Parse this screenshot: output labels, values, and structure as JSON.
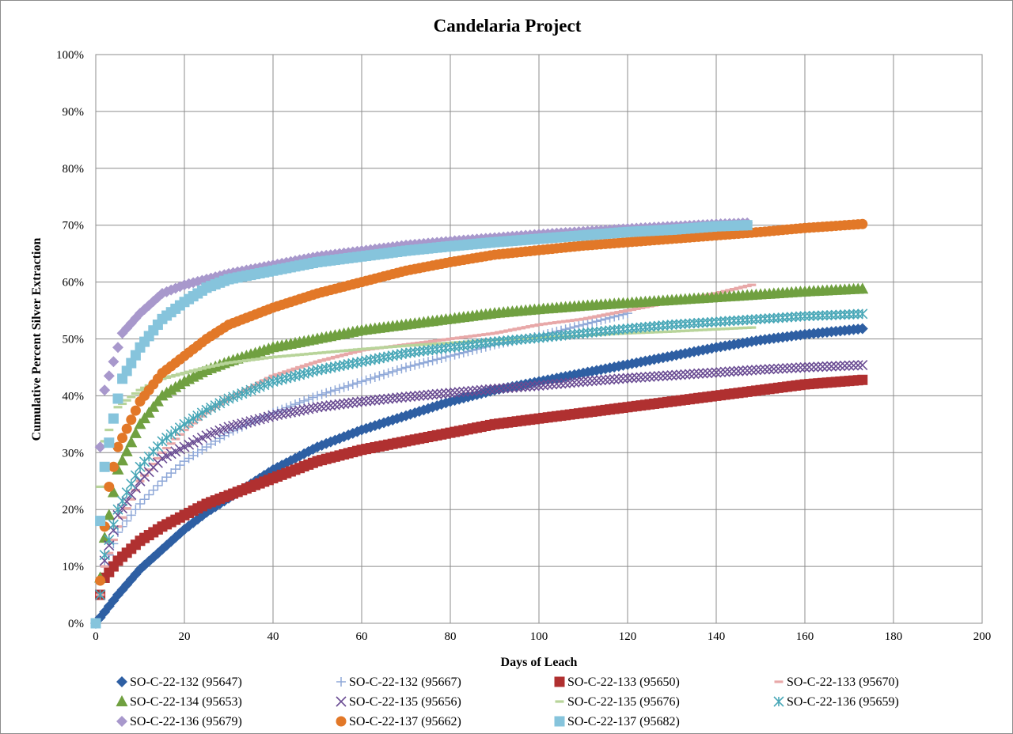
{
  "chart_data": {
    "type": "scatter",
    "title": "Candelaria Project",
    "xlabel": "Days of Leach",
    "ylabel": "Cumulative Percent Silver Extraction",
    "xlim": [
      0,
      200
    ],
    "ylim": [
      0,
      100
    ],
    "x_ticks": [
      "0",
      "20",
      "40",
      "60",
      "80",
      "100",
      "120",
      "140",
      "160",
      "180",
      "200"
    ],
    "y_ticks": [
      "0%",
      "10%",
      "20%",
      "30%",
      "40%",
      "50%",
      "60%",
      "70%",
      "80%",
      "90%",
      "100%"
    ],
    "grid": true,
    "legend_position": "bottom",
    "series": [
      {
        "name": "SO-C-22-132 (95647)",
        "color": "#2e5fa3",
        "marker": "diamond",
        "x_end": 173,
        "points": [
          [
            0,
            0
          ],
          [
            2,
            2
          ],
          [
            5,
            5
          ],
          [
            10,
            9.5
          ],
          [
            15,
            13
          ],
          [
            20,
            16.5
          ],
          [
            25,
            19.5
          ],
          [
            30,
            22
          ],
          [
            40,
            27
          ],
          [
            50,
            31
          ],
          [
            60,
            34
          ],
          [
            70,
            36.5
          ],
          [
            80,
            39
          ],
          [
            90,
            41
          ],
          [
            100,
            42.5
          ],
          [
            110,
            44
          ],
          [
            120,
            45.5
          ],
          [
            130,
            47
          ],
          [
            140,
            48.5
          ],
          [
            150,
            49.8
          ],
          [
            160,
            50.8
          ],
          [
            173,
            51.8
          ]
        ]
      },
      {
        "name": "SO-C-22-132 (95667)",
        "color": "#8fa8d8",
        "marker": "plus",
        "x_end": 120,
        "points": [
          [
            1,
            5
          ],
          [
            2,
            10
          ],
          [
            5,
            16
          ],
          [
            10,
            21
          ],
          [
            15,
            25
          ],
          [
            20,
            28.5
          ],
          [
            25,
            31
          ],
          [
            30,
            33.5
          ],
          [
            40,
            37
          ],
          [
            50,
            40
          ],
          [
            60,
            42.5
          ],
          [
            70,
            45
          ],
          [
            80,
            47
          ],
          [
            90,
            49
          ],
          [
            100,
            50.5
          ],
          [
            110,
            52.5
          ],
          [
            120,
            54.5
          ]
        ]
      },
      {
        "name": "SO-C-22-133 (95650)",
        "color": "#b03030",
        "marker": "square",
        "x_end": 173,
        "points": [
          [
            1,
            5
          ],
          [
            2,
            8
          ],
          [
            5,
            11
          ],
          [
            10,
            14.5
          ],
          [
            15,
            17
          ],
          [
            20,
            19
          ],
          [
            25,
            21
          ],
          [
            30,
            22.5
          ],
          [
            40,
            25.5
          ],
          [
            50,
            28.5
          ],
          [
            60,
            30.5
          ],
          [
            70,
            32
          ],
          [
            80,
            33.5
          ],
          [
            90,
            35
          ],
          [
            100,
            36
          ],
          [
            110,
            37
          ],
          [
            120,
            38
          ],
          [
            130,
            39
          ],
          [
            140,
            40
          ],
          [
            150,
            41
          ],
          [
            160,
            42
          ],
          [
            173,
            42.8
          ]
        ]
      },
      {
        "name": "SO-C-22-133 (95670)",
        "color": "#e8a8a8",
        "marker": "dash",
        "x_end": 148,
        "points": [
          [
            1,
            5
          ],
          [
            2,
            10
          ],
          [
            5,
            17
          ],
          [
            10,
            25
          ],
          [
            15,
            30
          ],
          [
            20,
            34
          ],
          [
            25,
            37
          ],
          [
            30,
            39.5
          ],
          [
            40,
            43.5
          ],
          [
            50,
            46
          ],
          [
            60,
            48
          ],
          [
            70,
            49
          ],
          [
            80,
            50
          ],
          [
            90,
            51
          ],
          [
            100,
            52.5
          ],
          [
            110,
            53.5
          ],
          [
            120,
            55
          ],
          [
            130,
            56.5
          ],
          [
            140,
            58
          ],
          [
            148,
            59.5
          ]
        ]
      },
      {
        "name": "SO-C-22-134 (95653)",
        "color": "#70a040",
        "marker": "triangle",
        "x_end": 173,
        "points": [
          [
            1,
            8
          ],
          [
            2,
            15
          ],
          [
            5,
            27
          ],
          [
            10,
            35
          ],
          [
            15,
            40
          ],
          [
            20,
            42.5
          ],
          [
            25,
            44.5
          ],
          [
            30,
            46
          ],
          [
            40,
            48.5
          ],
          [
            50,
            50
          ],
          [
            60,
            51.5
          ],
          [
            70,
            52.5
          ],
          [
            80,
            53.5
          ],
          [
            90,
            54.5
          ],
          [
            100,
            55.2
          ],
          [
            110,
            55.8
          ],
          [
            120,
            56.3
          ],
          [
            130,
            56.8
          ],
          [
            140,
            57.3
          ],
          [
            150,
            57.8
          ],
          [
            160,
            58.3
          ],
          [
            173,
            58.8
          ]
        ]
      },
      {
        "name": "SO-C-22-135 (95656)",
        "color": "#6a4c93",
        "marker": "x",
        "x_end": 173,
        "points": [
          [
            1,
            5
          ],
          [
            2,
            11
          ],
          [
            5,
            19
          ],
          [
            10,
            25
          ],
          [
            15,
            29
          ],
          [
            20,
            31
          ],
          [
            25,
            33
          ],
          [
            30,
            34.5
          ],
          [
            40,
            36.5
          ],
          [
            50,
            38
          ],
          [
            60,
            39
          ],
          [
            70,
            39.8
          ],
          [
            80,
            40.5
          ],
          [
            90,
            41.2
          ],
          [
            100,
            41.8
          ],
          [
            110,
            42.5
          ],
          [
            120,
            43.1
          ],
          [
            130,
            43.6
          ],
          [
            140,
            44.1
          ],
          [
            150,
            44.6
          ],
          [
            160,
            45
          ],
          [
            173,
            45.4
          ]
        ]
      },
      {
        "name": "SO-C-22-135 (95676)",
        "color": "#b8d49a",
        "marker": "dash",
        "x_end": 148,
        "points": [
          [
            1,
            24
          ],
          [
            2,
            32
          ],
          [
            5,
            38
          ],
          [
            10,
            41
          ],
          [
            15,
            43
          ],
          [
            20,
            44
          ],
          [
            25,
            45
          ],
          [
            30,
            45.8
          ],
          [
            40,
            46.8
          ],
          [
            50,
            47.5
          ],
          [
            60,
            48.2
          ],
          [
            70,
            48.8
          ],
          [
            80,
            49.3
          ],
          [
            90,
            49.8
          ],
          [
            100,
            50.2
          ],
          [
            110,
            50.6
          ],
          [
            120,
            51
          ],
          [
            130,
            51.3
          ],
          [
            140,
            51.7
          ],
          [
            148,
            52
          ]
        ]
      },
      {
        "name": "SO-C-22-136 (95659)",
        "color": "#4aa8b8",
        "marker": "asterisk",
        "x_end": 173,
        "points": [
          [
            1,
            5
          ],
          [
            2,
            12
          ],
          [
            5,
            20
          ],
          [
            10,
            27.5
          ],
          [
            15,
            32
          ],
          [
            20,
            35
          ],
          [
            25,
            37.5
          ],
          [
            30,
            39.5
          ],
          [
            40,
            42.5
          ],
          [
            50,
            44.5
          ],
          [
            60,
            46
          ],
          [
            70,
            47.5
          ],
          [
            80,
            48.5
          ],
          [
            90,
            49.5
          ],
          [
            100,
            50.2
          ],
          [
            110,
            51
          ],
          [
            120,
            51.8
          ],
          [
            130,
            52.5
          ],
          [
            140,
            53
          ],
          [
            150,
            53.5
          ],
          [
            160,
            54
          ],
          [
            173,
            54.4
          ]
        ]
      },
      {
        "name": "SO-C-22-136 (95679)",
        "color": "#a898cc",
        "marker": "diamond",
        "x_end": 147,
        "points": [
          [
            1,
            31
          ],
          [
            2,
            41
          ],
          [
            4,
            46
          ],
          [
            6,
            51
          ],
          [
            10,
            54.5
          ],
          [
            15,
            58
          ],
          [
            20,
            59.5
          ],
          [
            25,
            60.5
          ],
          [
            30,
            61.5
          ],
          [
            40,
            63
          ],
          [
            50,
            64.5
          ],
          [
            60,
            65.5
          ],
          [
            70,
            66.5
          ],
          [
            80,
            67.2
          ],
          [
            90,
            67.8
          ],
          [
            100,
            68.4
          ],
          [
            110,
            68.9
          ],
          [
            120,
            69.4
          ],
          [
            130,
            69.8
          ],
          [
            140,
            70.2
          ],
          [
            147,
            70.4
          ]
        ]
      },
      {
        "name": "SO-C-22-137 (95662)",
        "color": "#e27828",
        "marker": "circle",
        "x_end": 173,
        "points": [
          [
            1,
            7.5
          ],
          [
            2,
            17
          ],
          [
            3,
            24
          ],
          [
            5,
            31
          ],
          [
            10,
            39
          ],
          [
            15,
            44
          ],
          [
            20,
            47
          ],
          [
            25,
            50
          ],
          [
            30,
            52.5
          ],
          [
            40,
            55.5
          ],
          [
            50,
            58
          ],
          [
            60,
            60
          ],
          [
            70,
            62
          ],
          [
            80,
            63.5
          ],
          [
            90,
            64.8
          ],
          [
            100,
            65.6
          ],
          [
            110,
            66.4
          ],
          [
            120,
            67
          ],
          [
            130,
            67.6
          ],
          [
            140,
            68.2
          ],
          [
            150,
            68.8
          ],
          [
            160,
            69.5
          ],
          [
            173,
            70.2
          ]
        ]
      },
      {
        "name": "SO-C-22-137 (95682)",
        "color": "#86c4dc",
        "marker": "square",
        "x_end": 147,
        "points": [
          [
            0,
            0
          ],
          [
            1,
            18
          ],
          [
            2,
            27.5
          ],
          [
            4,
            36
          ],
          [
            6,
            43
          ],
          [
            10,
            48.5
          ],
          [
            15,
            53.5
          ],
          [
            20,
            56.5
          ],
          [
            25,
            59
          ],
          [
            30,
            60.5
          ],
          [
            40,
            62
          ],
          [
            50,
            63.5
          ],
          [
            60,
            64.5
          ],
          [
            70,
            65.5
          ],
          [
            80,
            66.3
          ],
          [
            90,
            67
          ],
          [
            100,
            67.6
          ],
          [
            110,
            68.2
          ],
          [
            120,
            68.8
          ],
          [
            130,
            69.2
          ],
          [
            140,
            69.8
          ],
          [
            147,
            70
          ]
        ]
      }
    ]
  }
}
